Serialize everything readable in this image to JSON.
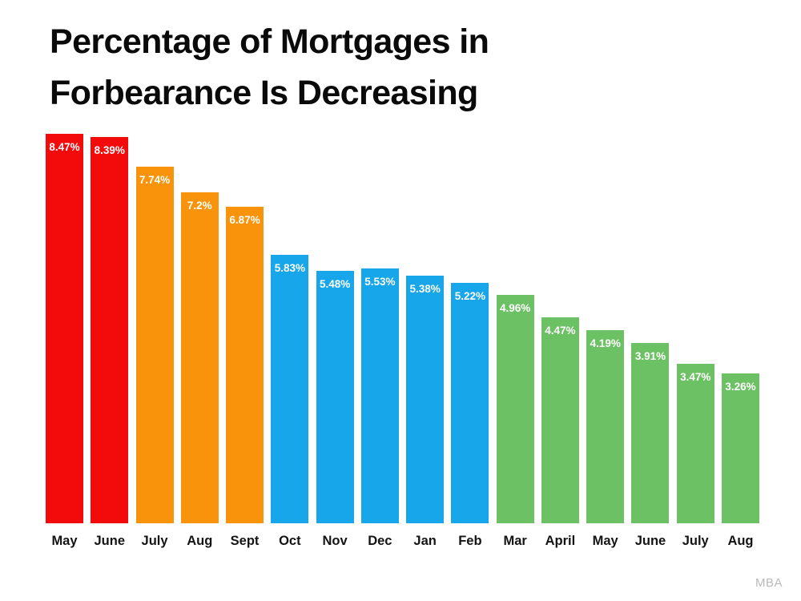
{
  "title_lines": {
    "line1": "Percentage of Mortgages in",
    "line2": "Forbearance Is Decreasing"
  },
  "source": "MBA",
  "chart_data": {
    "type": "bar",
    "title": "Percentage of Mortgages in Forbearance Is Decreasing",
    "xlabel": "",
    "ylabel": "",
    "ylim": [
      0,
      8.5
    ],
    "grid": false,
    "legend": false,
    "value_label_color": "#ffffff",
    "categories": [
      "May",
      "June",
      "July",
      "Aug",
      "Sept",
      "Oct",
      "Nov",
      "Dec",
      "Jan",
      "Feb",
      "Mar",
      "April",
      "May",
      "June",
      "July",
      "Aug"
    ],
    "values": [
      8.47,
      8.39,
      7.74,
      7.2,
      6.87,
      5.83,
      5.48,
      5.53,
      5.38,
      5.22,
      4.96,
      4.47,
      4.19,
      3.91,
      3.47,
      3.26
    ],
    "value_labels": [
      "8.47%",
      "8.39%",
      "7.74%",
      "7.2%",
      "6.87%",
      "5.83%",
      "5.48%",
      "5.53%",
      "5.38%",
      "5.22%",
      "4.96%",
      "4.47%",
      "4.19%",
      "3.91%",
      "3.47%",
      "3.26%"
    ],
    "bar_colors": [
      "#f30b0b",
      "#f30b0b",
      "#f9930b",
      "#f9930b",
      "#f9930b",
      "#16a6e9",
      "#16a6e9",
      "#16a6e9",
      "#16a6e9",
      "#16a6e9",
      "#6cc164",
      "#6cc164",
      "#6cc164",
      "#6cc164",
      "#6cc164",
      "#6cc164"
    ],
    "color_groups": {
      "red": "#f30b0b",
      "orange": "#f9930b",
      "blue": "#16a6e9",
      "green": "#6cc164"
    }
  }
}
